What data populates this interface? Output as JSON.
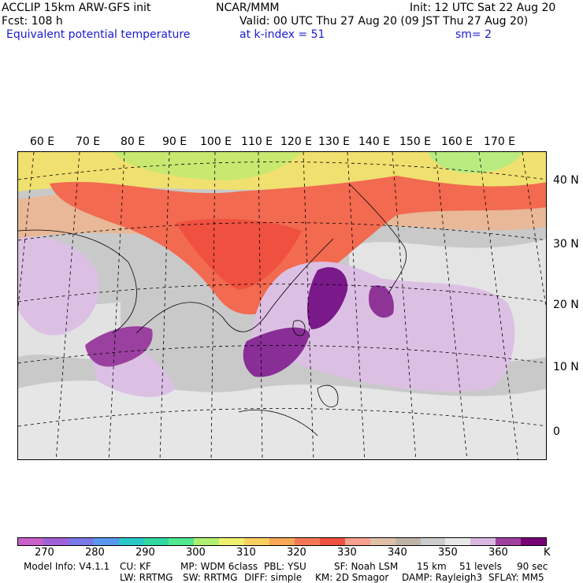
{
  "header": {
    "model": "ACCLIP 15km ARW-GFS init",
    "center": "NCAR/MMM",
    "init": "Init: 12 UTC Sat 22 Aug 20",
    "fcst": "Fcst:  108 h",
    "valid": "Valid: 00 UTC Thu 27 Aug 20 (09 JST Thu 27 Aug 20)",
    "field": "Equivalent potential temperature",
    "level": "at k-index =  51",
    "smoothing": "sm= 2"
  },
  "map": {
    "lon_labels": [
      "60 E",
      "70 E",
      "80 E",
      "90 E",
      "100 E",
      "110 E",
      "120 E",
      "130 E",
      "140 E",
      "150 E",
      "160 E",
      "170 E"
    ],
    "lat_labels": [
      "40 N",
      "30 N",
      "20 N",
      "10 N",
      "0"
    ]
  },
  "colorbar": {
    "colors": [
      "#c860c8",
      "#a060d8",
      "#7878e8",
      "#5a98f0",
      "#28c8c8",
      "#30d8a0",
      "#50e890",
      "#b0f070",
      "#f0f070",
      "#f8d060",
      "#f8a858",
      "#f87858",
      "#f05040",
      "#f8a090",
      "#e0c0a8",
      "#c0b4a8",
      "#cccccc",
      "#e8e8e8",
      "#d8b8e0",
      "#a040a0",
      "#780078"
    ],
    "ticks": [
      "270",
      "280",
      "290",
      "300",
      "310",
      "320",
      "330",
      "340",
      "350",
      "360"
    ],
    "unit": "K"
  },
  "footer": {
    "line1": [
      "Model Info: V4.1.1",
      "CU: KF",
      "MP: WDM 6class",
      "PBL: YSU",
      "SF: Noah LSM",
      "15 km",
      "51 levels",
      "90 sec"
    ],
    "line2": [
      "LW: RRTMG",
      "SW: RRTMG",
      "DIFF: simple",
      "KM: 2D Smagor",
      "DAMP: Rayleigh3",
      "SFLAY: MM5"
    ]
  }
}
